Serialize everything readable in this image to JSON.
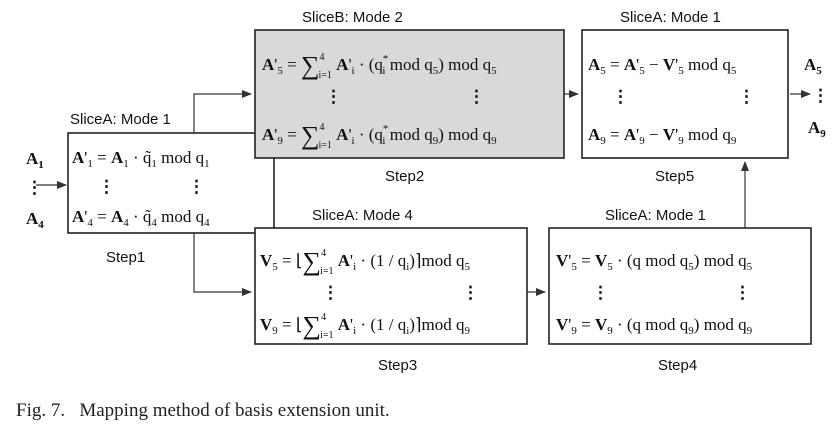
{
  "caption": "Fig. 7.   Mapping method of basis extension unit.",
  "inputs": {
    "top": "A",
    "top_sub": "1",
    "bottom": "A",
    "bottom_sub": "4"
  },
  "outputs": {
    "top": "A",
    "top_sub": "5",
    "bottom": "A",
    "bottom_sub": "9"
  },
  "ellipsis": "⋮",
  "blocks": {
    "step1": {
      "label": "Step1",
      "mode": "SliceA: Mode 1",
      "eq_top": "A'₁ = A₁ · q̃₁ mod q₁",
      "eq_bottom": "A'₄ = A₄ · q̃₄ mod q₄"
    },
    "step2": {
      "label": "Step2",
      "mode": "SliceB: Mode 2",
      "eq_top": "A'₅ = ∑ᵢ₌₁⁴ A'ᵢ · (qᵢ* mod q₅) mod q₅",
      "eq_bottom": "A'₉ = ∑ᵢ₌₁⁴ A'ᵢ · (qᵢ* mod q₉) mod q₉"
    },
    "step3": {
      "label": "Step3",
      "mode": "SliceA: Mode 4",
      "eq_top": "V₅ = ⌊∑ᵢ₌₁⁴ A'ᵢ · (1 / qᵢ)⌉ mod q₅",
      "eq_bottom": "V₉ = ⌊∑ᵢ₌₁⁴ A'ᵢ · (1 / qᵢ)⌉ mod q₉"
    },
    "step4": {
      "label": "Step4",
      "mode": "SliceA: Mode 1",
      "eq_top": "V'₅ = V₅ · (q mod q₅) mod q₅",
      "eq_bottom": "V'₉ = V₉ · (q mod q₉) mod q₉"
    },
    "step5": {
      "label": "Step5",
      "mode": "SliceA: Mode 1",
      "eq_top": "A₅ = A'₅ − V'₅ mod q₅",
      "eq_bottom": "A₉ = A'₉ − V'₉ mod q₉"
    }
  },
  "colors": {
    "step2_fill": "#d9d9d9",
    "stroke": "#222222",
    "arrow": "#333333"
  }
}
